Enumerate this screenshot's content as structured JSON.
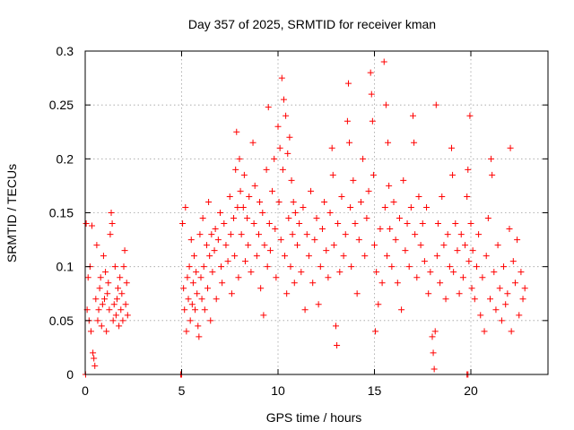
{
  "chart_data": {
    "type": "scatter",
    "title": "Day 357 of 2025, SRMTID for receiver kman",
    "xlabel": "GPS time / hours",
    "ylabel": "SRMTID / TECUs",
    "xlim": [
      0,
      24
    ],
    "ylim": [
      0,
      0.3
    ],
    "xticks": [
      0,
      5,
      10,
      15,
      20
    ],
    "xtick_labels": [
      "0",
      "5",
      "10",
      "15",
      "20"
    ],
    "yticks": [
      0,
      0.05,
      0.1,
      0.15,
      0.2,
      0.25,
      0.3
    ],
    "ytick_labels": [
      "0",
      "0.05",
      "0.1",
      "0.15",
      "0.2",
      "0.25",
      "0.3"
    ],
    "grid": true,
    "marker": "+",
    "color": "#ff0000",
    "series": [
      {
        "name": "SRMTID",
        "points": [
          [
            0.05,
            0.14
          ],
          [
            0.1,
            0.06
          ],
          [
            0.15,
            0.09
          ],
          [
            0.2,
            0.05
          ],
          [
            0.25,
            0.1
          ],
          [
            0.3,
            0.04
          ],
          [
            0.35,
            0.138
          ],
          [
            0.4,
            0.02
          ],
          [
            0.45,
            0.015
          ],
          [
            0.5,
            0.008
          ],
          [
            0.55,
            0.07
          ],
          [
            0.6,
            0.12
          ],
          [
            0.65,
            0.05
          ],
          [
            0.7,
            0.06
          ],
          [
            0.75,
            0.08
          ],
          [
            0.8,
            0.09
          ],
          [
            0.85,
            0.045
          ],
          [
            0.9,
            0.065
          ],
          [
            0.95,
            0.11
          ],
          [
            1.0,
            0.07
          ],
          [
            1.05,
            0.095
          ],
          [
            1.1,
            0.04
          ],
          [
            1.15,
            0.075
          ],
          [
            1.2,
            0.085
          ],
          [
            1.25,
            0.06
          ],
          [
            1.3,
            0.13
          ],
          [
            1.35,
            0.15
          ],
          [
            1.4,
            0.14
          ],
          [
            1.45,
            0.05
          ],
          [
            1.5,
            0.065
          ],
          [
            1.55,
            0.1
          ],
          [
            1.6,
            0.055
          ],
          [
            1.65,
            0.07
          ],
          [
            1.7,
            0.08
          ],
          [
            1.75,
            0.045
          ],
          [
            1.8,
            0.09
          ],
          [
            1.85,
            0.06
          ],
          [
            1.9,
            0.075
          ],
          [
            1.95,
            0.05
          ],
          [
            2.0,
            0.1
          ],
          [
            2.05,
            0.115
          ],
          [
            2.1,
            0.065
          ],
          [
            2.15,
            0.085
          ],
          [
            2.2,
            0.055
          ],
          [
            0.02,
            0.0
          ],
          [
            4.95,
            0.0
          ],
          [
            5.0,
            0.0
          ],
          [
            19.8,
            0.0
          ],
          [
            19.85,
            0.0
          ],
          [
            5.05,
            0.14
          ],
          [
            5.1,
            0.08
          ],
          [
            5.15,
            0.06
          ],
          [
            5.2,
            0.155
          ],
          [
            5.25,
            0.04
          ],
          [
            5.3,
            0.09
          ],
          [
            5.35,
            0.07
          ],
          [
            5.4,
            0.1
          ],
          [
            5.45,
            0.05
          ],
          [
            5.5,
            0.125
          ],
          [
            5.55,
            0.065
          ],
          [
            5.6,
            0.085
          ],
          [
            5.65,
            0.11
          ],
          [
            5.7,
            0.06
          ],
          [
            5.75,
            0.095
          ],
          [
            5.8,
            0.075
          ],
          [
            5.85,
            0.045
          ],
          [
            5.9,
            0.035
          ],
          [
            5.95,
            0.13
          ],
          [
            6.0,
            0.09
          ],
          [
            6.05,
            0.07
          ],
          [
            6.1,
            0.145
          ],
          [
            6.15,
            0.1
          ],
          [
            6.2,
            0.06
          ],
          [
            6.3,
            0.12
          ],
          [
            6.35,
            0.08
          ],
          [
            6.4,
            0.16
          ],
          [
            6.45,
            0.11
          ],
          [
            6.5,
            0.05
          ],
          [
            6.55,
            0.13
          ],
          [
            6.6,
            0.095
          ],
          [
            6.7,
            0.115
          ],
          [
            6.75,
            0.135
          ],
          [
            6.8,
            0.07
          ],
          [
            6.9,
            0.125
          ],
          [
            7.0,
            0.15
          ],
          [
            7.05,
            0.1
          ],
          [
            7.1,
            0.085
          ],
          [
            7.2,
            0.14
          ],
          [
            7.3,
            0.12
          ],
          [
            7.4,
            0.105
          ],
          [
            7.5,
            0.165
          ],
          [
            7.55,
            0.13
          ],
          [
            7.6,
            0.075
          ],
          [
            7.7,
            0.145
          ],
          [
            7.75,
            0.11
          ],
          [
            7.8,
            0.19
          ],
          [
            7.85,
            0.225
          ],
          [
            7.9,
            0.155
          ],
          [
            7.95,
            0.09
          ],
          [
            8.0,
            0.2
          ],
          [
            8.05,
            0.17
          ],
          [
            8.1,
            0.13
          ],
          [
            8.2,
            0.155
          ],
          [
            8.25,
            0.185
          ],
          [
            8.3,
            0.105
          ],
          [
            8.4,
            0.145
          ],
          [
            8.45,
            0.12
          ],
          [
            8.5,
            0.165
          ],
          [
            8.6,
            0.095
          ],
          [
            8.7,
            0.215
          ],
          [
            8.75,
            0.14
          ],
          [
            8.8,
            0.175
          ],
          [
            8.9,
            0.11
          ],
          [
            9.0,
            0.13
          ],
          [
            9.05,
            0.16
          ],
          [
            9.1,
            0.08
          ],
          [
            9.2,
            0.15
          ],
          [
            9.25,
            0.055
          ],
          [
            9.3,
            0.12
          ],
          [
            9.4,
            0.19
          ],
          [
            9.45,
            0.1
          ],
          [
            9.5,
            0.248
          ],
          [
            9.55,
            0.14
          ],
          [
            9.6,
            0.115
          ],
          [
            9.7,
            0.17
          ],
          [
            9.8,
            0.2
          ],
          [
            9.85,
            0.135
          ],
          [
            9.9,
            0.09
          ],
          [
            10.0,
            0.23
          ],
          [
            10.05,
            0.16
          ],
          [
            10.1,
            0.21
          ],
          [
            10.15,
            0.125
          ],
          [
            10.2,
            0.275
          ],
          [
            10.25,
            0.19
          ],
          [
            10.3,
            0.255
          ],
          [
            10.35,
            0.11
          ],
          [
            10.4,
            0.24
          ],
          [
            10.45,
            0.075
          ],
          [
            10.5,
            0.205
          ],
          [
            10.55,
            0.145
          ],
          [
            10.6,
            0.22
          ],
          [
            10.65,
            0.1
          ],
          [
            10.7,
            0.18
          ],
          [
            10.75,
            0.13
          ],
          [
            10.8,
            0.16
          ],
          [
            10.85,
            0.085
          ],
          [
            10.9,
            0.15
          ],
          [
            11.0,
            0.12
          ],
          [
            11.1,
            0.14
          ],
          [
            11.2,
            0.095
          ],
          [
            11.3,
            0.155
          ],
          [
            11.4,
            0.06
          ],
          [
            11.5,
            0.13
          ],
          [
            11.6,
            0.11
          ],
          [
            11.7,
            0.17
          ],
          [
            11.8,
            0.085
          ],
          [
            11.9,
            0.125
          ],
          [
            12.0,
            0.145
          ],
          [
            12.1,
            0.065
          ],
          [
            12.2,
            0.1
          ],
          [
            12.3,
            0.135
          ],
          [
            12.4,
            0.16
          ],
          [
            12.5,
            0.115
          ],
          [
            12.6,
            0.09
          ],
          [
            12.7,
            0.15
          ],
          [
            12.8,
            0.21
          ],
          [
            12.85,
            0.185
          ],
          [
            12.9,
            0.12
          ],
          [
            13.0,
            0.045
          ],
          [
            13.05,
            0.027
          ],
          [
            13.1,
            0.14
          ],
          [
            13.2,
            0.095
          ],
          [
            13.3,
            0.165
          ],
          [
            13.4,
            0.11
          ],
          [
            13.5,
            0.13
          ],
          [
            13.6,
            0.235
          ],
          [
            13.65,
            0.27
          ],
          [
            13.7,
            0.215
          ],
          [
            13.75,
            0.155
          ],
          [
            13.8,
            0.1
          ],
          [
            13.9,
            0.18
          ],
          [
            14.0,
            0.14
          ],
          [
            14.1,
            0.075
          ],
          [
            14.2,
            0.125
          ],
          [
            14.3,
            0.16
          ],
          [
            14.4,
            0.2
          ],
          [
            14.5,
            0.11
          ],
          [
            14.6,
            0.145
          ],
          [
            14.7,
            0.17
          ],
          [
            14.8,
            0.28
          ],
          [
            14.85,
            0.26
          ],
          [
            14.9,
            0.235
          ],
          [
            14.95,
            0.185
          ],
          [
            15.0,
            0.12
          ],
          [
            15.05,
            0.04
          ],
          [
            15.1,
            0.095
          ],
          [
            15.2,
            0.065
          ],
          [
            15.3,
            0.135
          ],
          [
            15.4,
            0.085
          ],
          [
            15.5,
            0.29
          ],
          [
            15.55,
            0.155
          ],
          [
            15.6,
            0.25
          ],
          [
            15.65,
            0.11
          ],
          [
            15.7,
            0.215
          ],
          [
            15.75,
            0.175
          ],
          [
            15.8,
            0.135
          ],
          [
            15.9,
            0.1
          ],
          [
            16.0,
            0.16
          ],
          [
            16.1,
            0.125
          ],
          [
            16.2,
            0.085
          ],
          [
            16.3,
            0.145
          ],
          [
            16.4,
            0.06
          ],
          [
            16.5,
            0.18
          ],
          [
            16.6,
            0.115
          ],
          [
            16.7,
            0.14
          ],
          [
            16.8,
            0.1
          ],
          [
            16.9,
            0.155
          ],
          [
            17.0,
            0.24
          ],
          [
            17.05,
            0.215
          ],
          [
            17.1,
            0.13
          ],
          [
            17.2,
            0.09
          ],
          [
            17.3,
            0.165
          ],
          [
            17.4,
            0.12
          ],
          [
            17.5,
            0.14
          ],
          [
            17.6,
            0.105
          ],
          [
            17.7,
            0.155
          ],
          [
            17.8,
            0.075
          ],
          [
            17.9,
            0.095
          ],
          [
            18.0,
            0.035
          ],
          [
            18.05,
            0.02
          ],
          [
            18.1,
            0.005
          ],
          [
            18.15,
            0.04
          ],
          [
            18.2,
            0.25
          ],
          [
            18.25,
            0.11
          ],
          [
            18.3,
            0.14
          ],
          [
            18.4,
            0.085
          ],
          [
            18.5,
            0.165
          ],
          [
            18.6,
            0.12
          ],
          [
            18.7,
            0.07
          ],
          [
            18.8,
            0.13
          ],
          [
            18.9,
            0.1
          ],
          [
            19.0,
            0.21
          ],
          [
            19.05,
            0.185
          ],
          [
            19.1,
            0.095
          ],
          [
            19.2,
            0.14
          ],
          [
            19.3,
            0.115
          ],
          [
            19.4,
            0.075
          ],
          [
            19.5,
            0.13
          ],
          [
            19.6,
            0.09
          ],
          [
            19.7,
            0.12
          ],
          [
            19.8,
            0.165
          ],
          [
            19.85,
            0.19
          ],
          [
            19.9,
            0.105
          ],
          [
            19.95,
            0.24
          ],
          [
            20.0,
            0.14
          ],
          [
            20.05,
            0.08
          ],
          [
            20.1,
            0.115
          ],
          [
            20.2,
            0.07
          ],
          [
            20.3,
            0.1
          ],
          [
            20.4,
            0.13
          ],
          [
            20.5,
            0.055
          ],
          [
            20.6,
            0.09
          ],
          [
            20.7,
            0.04
          ],
          [
            20.8,
            0.11
          ],
          [
            20.9,
            0.145
          ],
          [
            21.0,
            0.07
          ],
          [
            21.05,
            0.2
          ],
          [
            21.1,
            0.185
          ],
          [
            21.2,
            0.095
          ],
          [
            21.3,
            0.06
          ],
          [
            21.4,
            0.12
          ],
          [
            21.5,
            0.08
          ],
          [
            21.6,
            0.05
          ],
          [
            21.7,
            0.1
          ],
          [
            21.8,
            0.065
          ],
          [
            21.9,
            0.075
          ],
          [
            22.0,
            0.135
          ],
          [
            22.05,
            0.21
          ],
          [
            22.1,
            0.04
          ],
          [
            22.2,
            0.105
          ],
          [
            22.3,
            0.085
          ],
          [
            22.4,
            0.125
          ],
          [
            22.5,
            0.055
          ],
          [
            22.6,
            0.095
          ],
          [
            22.7,
            0.07
          ],
          [
            22.8,
            0.08
          ]
        ]
      }
    ]
  }
}
